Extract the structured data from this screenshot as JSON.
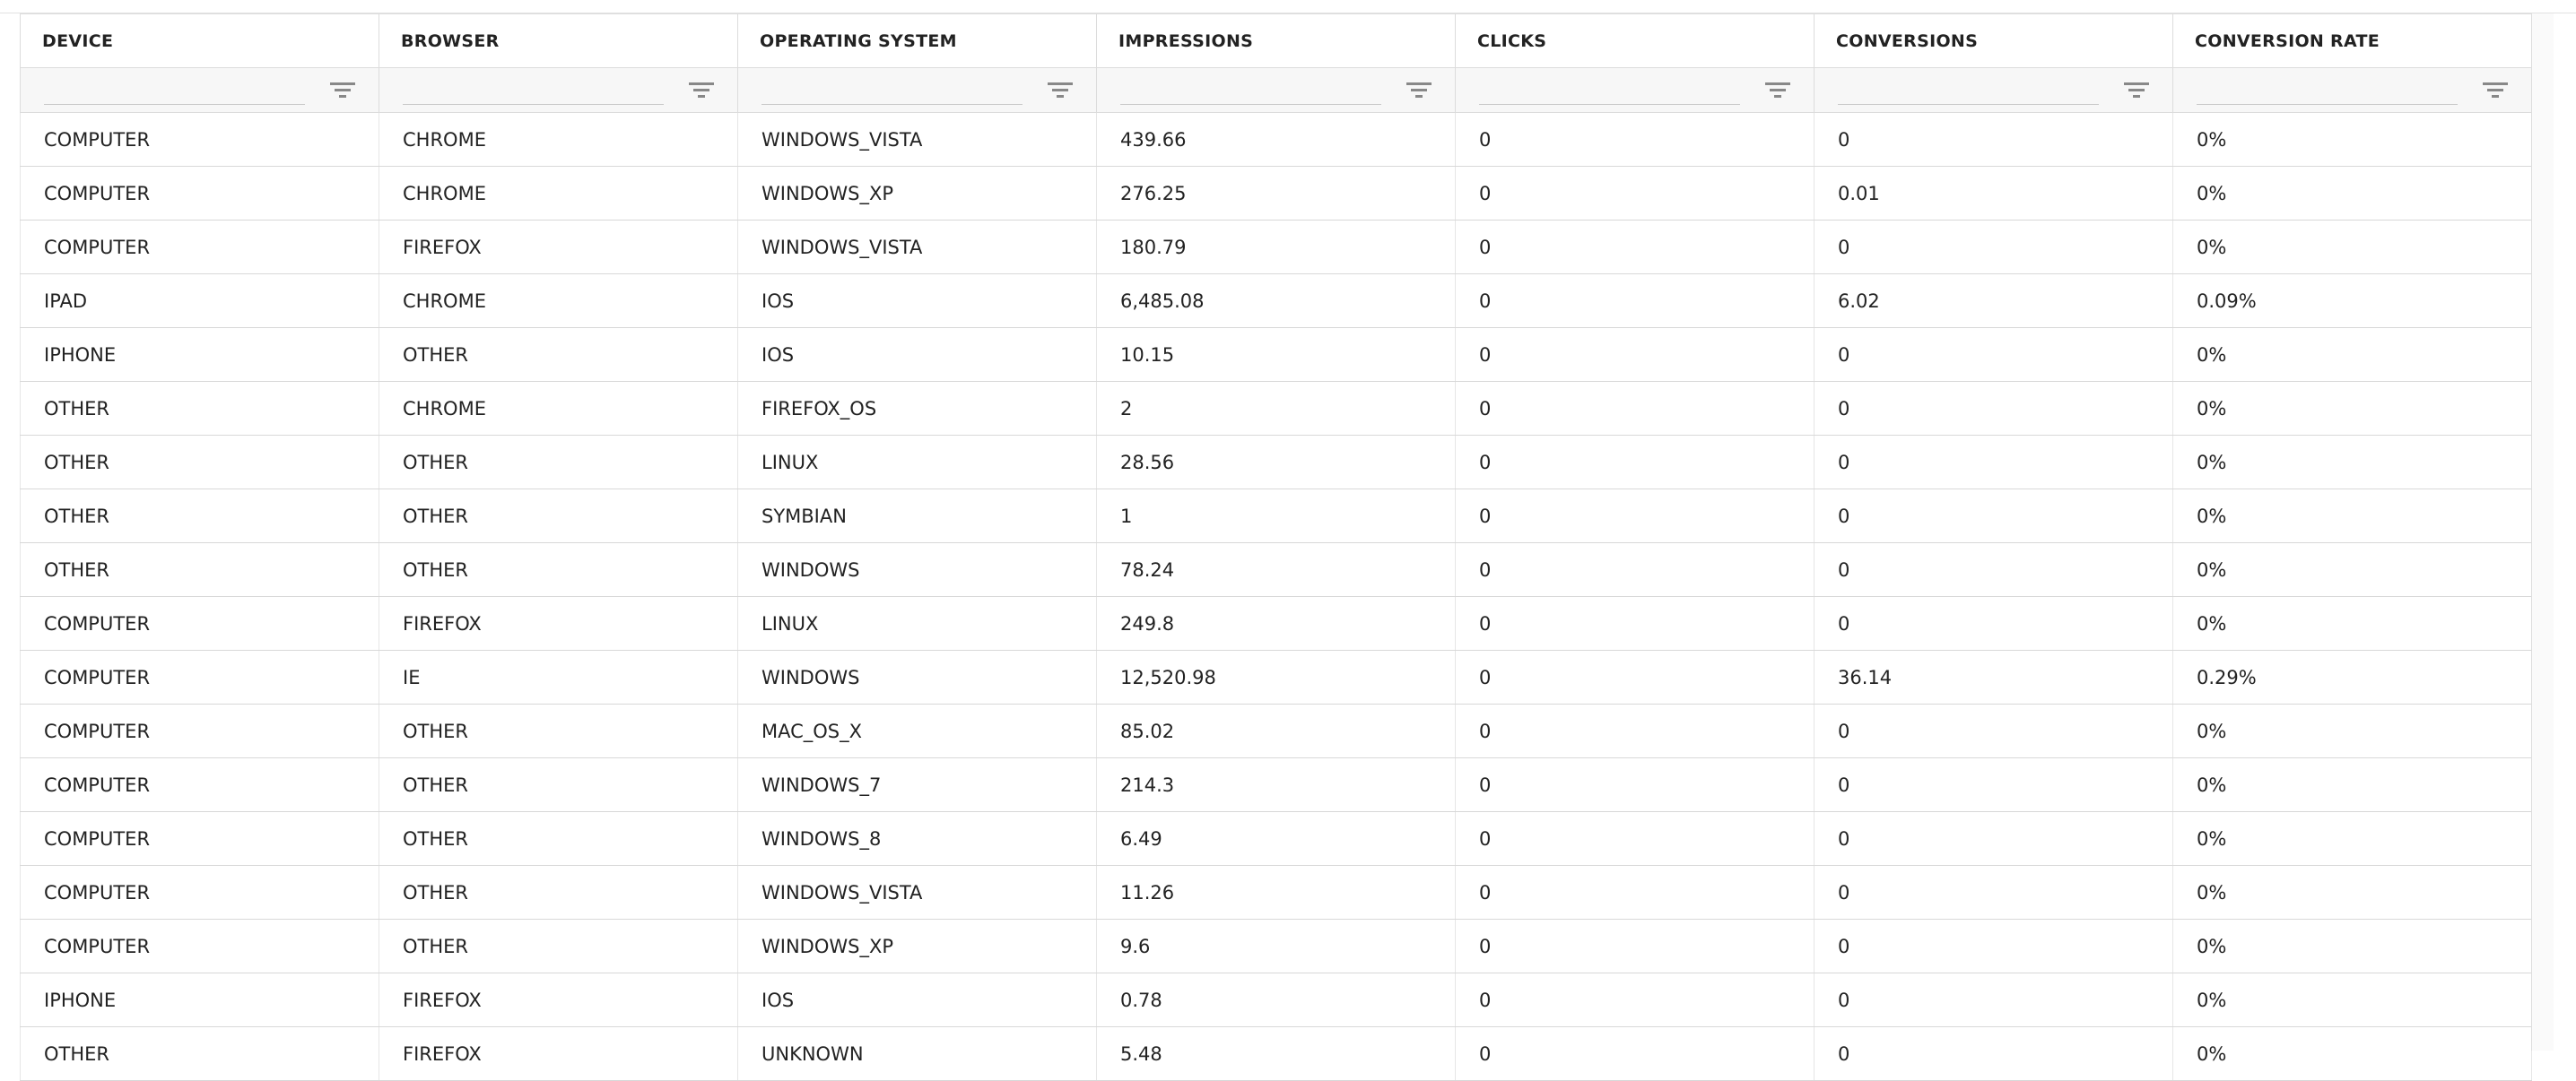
{
  "table": {
    "headers": [
      "DEVICE",
      "BROWSER",
      "OPERATING SYSTEM",
      "IMPRESSIONS",
      "CLICKS",
      "CONVERSIONS",
      "CONVERSION RATE"
    ],
    "rows": [
      [
        "COMPUTER",
        "CHROME",
        "WINDOWS_VISTA",
        "439.66",
        "0",
        "0",
        "0%"
      ],
      [
        "COMPUTER",
        "CHROME",
        "WINDOWS_XP",
        "276.25",
        "0",
        "0.01",
        "0%"
      ],
      [
        "COMPUTER",
        "FIREFOX",
        "WINDOWS_VISTA",
        "180.79",
        "0",
        "0",
        "0%"
      ],
      [
        "IPAD",
        "CHROME",
        "IOS",
        "6,485.08",
        "0",
        "6.02",
        "0.09%"
      ],
      [
        "IPHONE",
        "OTHER",
        "IOS",
        "10.15",
        "0",
        "0",
        "0%"
      ],
      [
        "OTHER",
        "CHROME",
        "FIREFOX_OS",
        "2",
        "0",
        "0",
        "0%"
      ],
      [
        "OTHER",
        "OTHER",
        "LINUX",
        "28.56",
        "0",
        "0",
        "0%"
      ],
      [
        "OTHER",
        "OTHER",
        "SYMBIAN",
        "1",
        "0",
        "0",
        "0%"
      ],
      [
        "OTHER",
        "OTHER",
        "WINDOWS",
        "78.24",
        "0",
        "0",
        "0%"
      ],
      [
        "COMPUTER",
        "FIREFOX",
        "LINUX",
        "249.8",
        "0",
        "0",
        "0%"
      ],
      [
        "COMPUTER",
        "IE",
        "WINDOWS",
        "12,520.98",
        "0",
        "36.14",
        "0.29%"
      ],
      [
        "COMPUTER",
        "OTHER",
        "MAC_OS_X",
        "85.02",
        "0",
        "0",
        "0%"
      ],
      [
        "COMPUTER",
        "OTHER",
        "WINDOWS_7",
        "214.3",
        "0",
        "0",
        "0%"
      ],
      [
        "COMPUTER",
        "OTHER",
        "WINDOWS_8",
        "6.49",
        "0",
        "0",
        "0%"
      ],
      [
        "COMPUTER",
        "OTHER",
        "WINDOWS_VISTA",
        "11.26",
        "0",
        "0",
        "0%"
      ],
      [
        "COMPUTER",
        "OTHER",
        "WINDOWS_XP",
        "9.6",
        "0",
        "0",
        "0%"
      ],
      [
        "IPHONE",
        "FIREFOX",
        "IOS",
        "0.78",
        "0",
        "0",
        "0%"
      ],
      [
        "OTHER",
        "FIREFOX",
        "UNKNOWN",
        "5.48",
        "0",
        "0",
        "0%"
      ]
    ]
  }
}
